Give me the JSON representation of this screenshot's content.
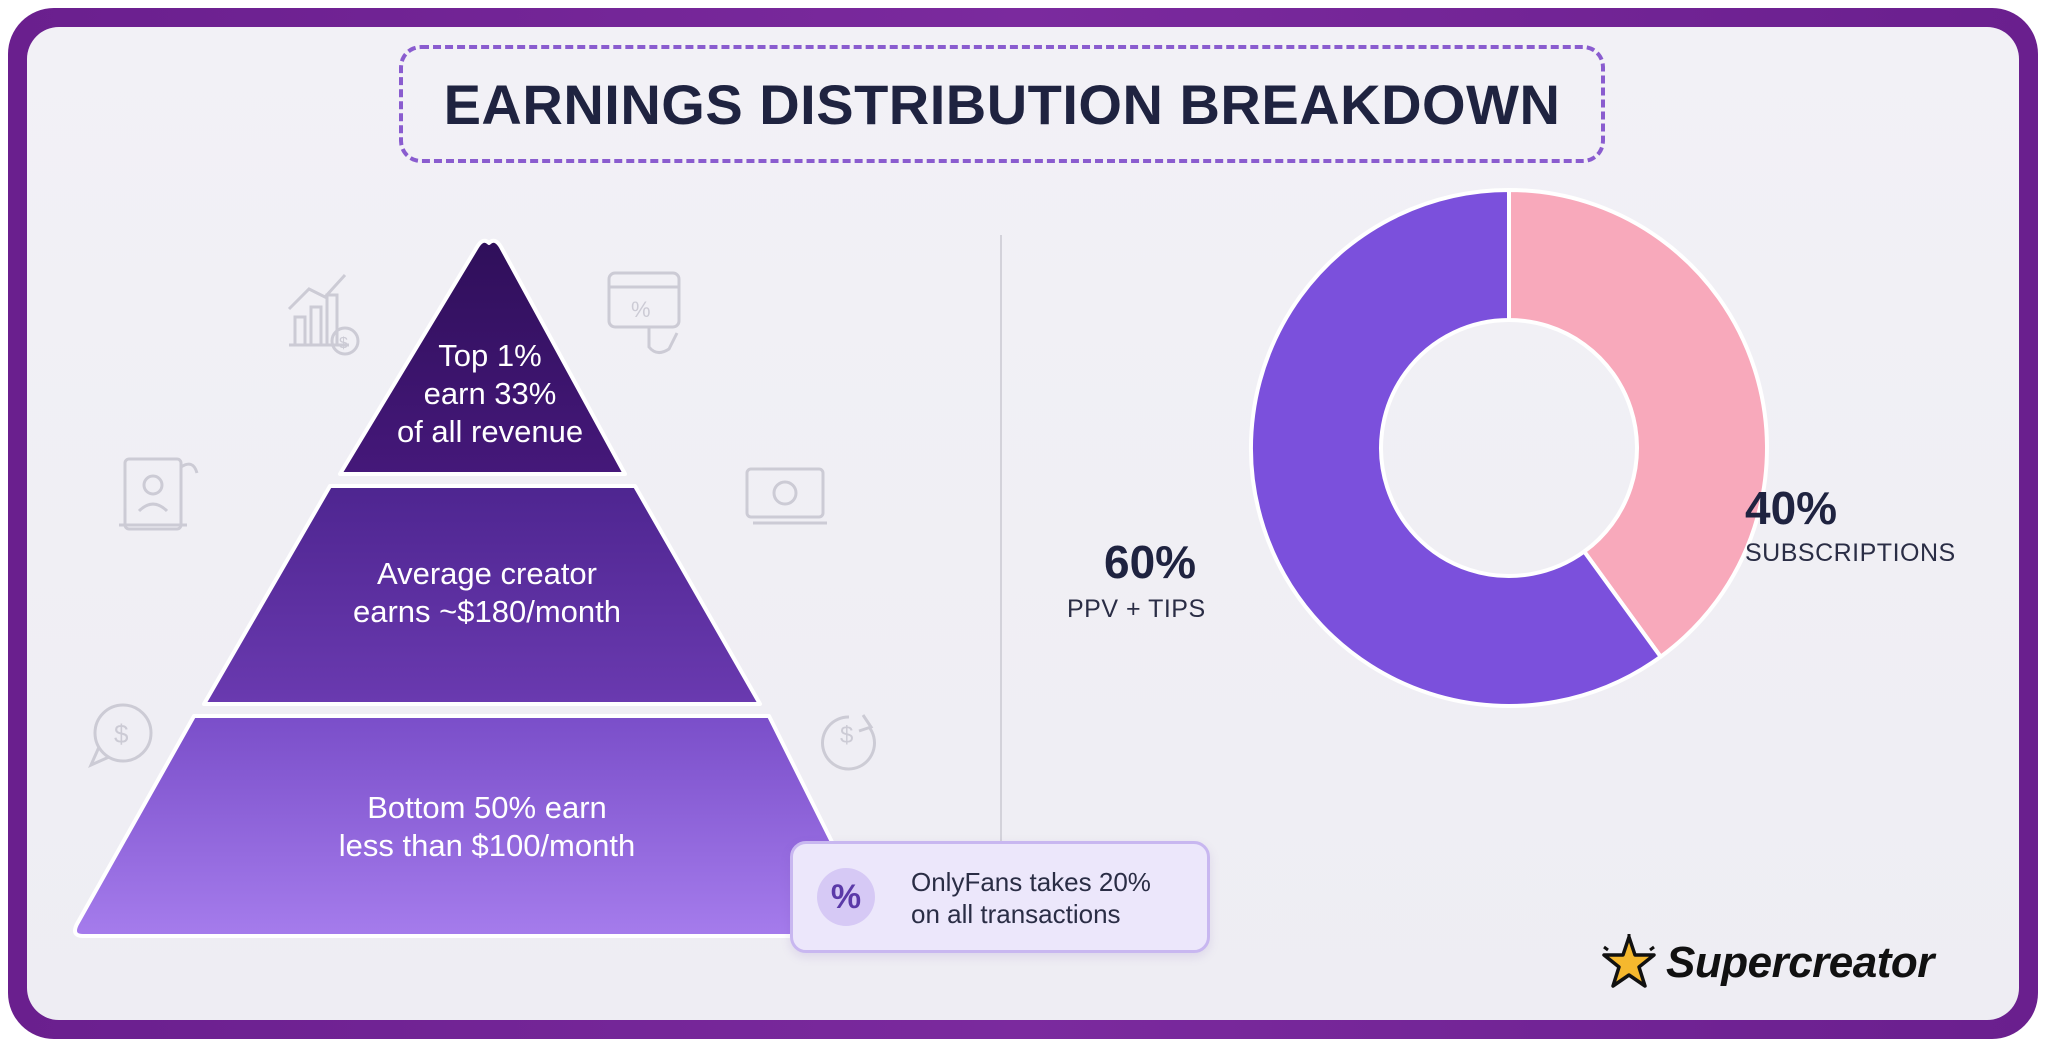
{
  "title": "EARNINGS DISTRIBUTION BREAKDOWN",
  "pyramid": {
    "tiers": [
      {
        "lines": [
          "Top 1%",
          "earn 33%",
          "of all revenue"
        ],
        "color": "#3a1468"
      },
      {
        "lines": [
          "Average creator",
          "earns ~$180/month"
        ],
        "color": "#5a2f9e"
      },
      {
        "lines": [
          "Bottom 50% earn",
          "less than $100/month"
        ],
        "color": "#8b5fd8"
      }
    ]
  },
  "note": {
    "icon": "percent-icon",
    "icon_glyph": "%",
    "lines": [
      "OnlyFans takes 20%",
      "on all transactions"
    ]
  },
  "chart_data": {
    "type": "pie",
    "donut": true,
    "slices": [
      {
        "label": "SUBSCRIPTIONS",
        "value": 40,
        "display": "40%",
        "color": "#f8a9bb"
      },
      {
        "label": "PPV + TIPS",
        "value": 60,
        "display": "60%",
        "color": "#7b50dc"
      }
    ]
  },
  "decorative_icons": [
    "chart-dollar-icon",
    "browser-percent-icon",
    "contract-icon",
    "cash-icon",
    "dollar-chat-icon",
    "dollar-refresh-icon"
  ],
  "brand": {
    "name": "Supercreator",
    "icon": "star-logo-icon",
    "color": "#f5b82e"
  }
}
